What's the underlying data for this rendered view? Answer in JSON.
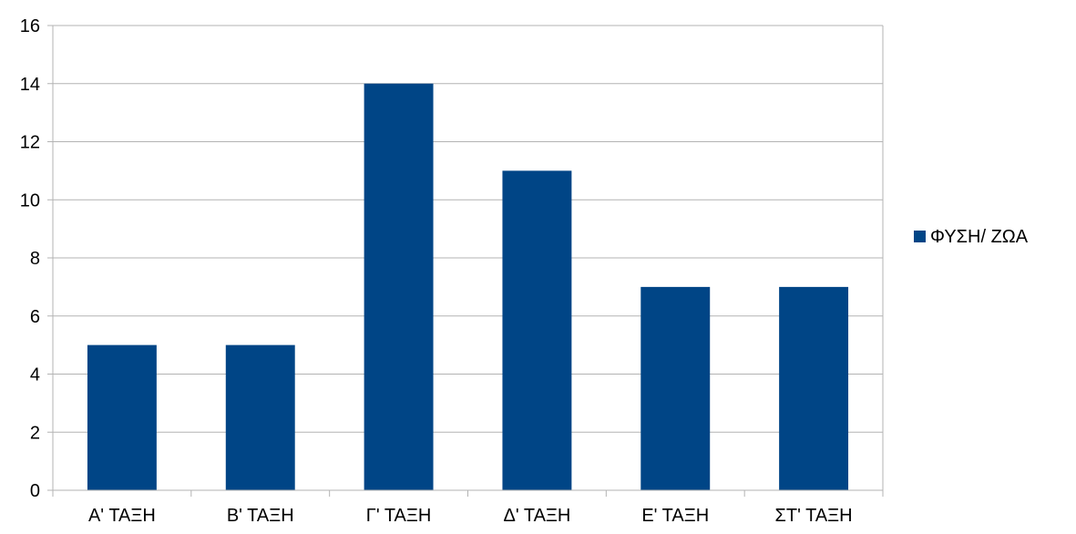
{
  "chart_data": {
    "type": "bar",
    "title": "",
    "xlabel": "",
    "ylabel": "",
    "categories": [
      "Α' ΤΑΞΗ",
      "Β' ΤΑΞΗ",
      "Γ' ΤΑΞΗ",
      "Δ' ΤΑΞΗ",
      "Ε' ΤΑΞΗ",
      "ΣΤ' ΤΑΞΗ"
    ],
    "series": [
      {
        "name": "ΦΥΣΗ/ ΖΩΑ",
        "color": "#004586",
        "values": [
          5,
          5,
          14,
          11,
          7,
          7
        ]
      }
    ],
    "ylim": [
      0,
      16
    ],
    "yticks": [
      0,
      2,
      4,
      6,
      8,
      10,
      12,
      14,
      16
    ],
    "grid": true,
    "legend_position": "right"
  }
}
